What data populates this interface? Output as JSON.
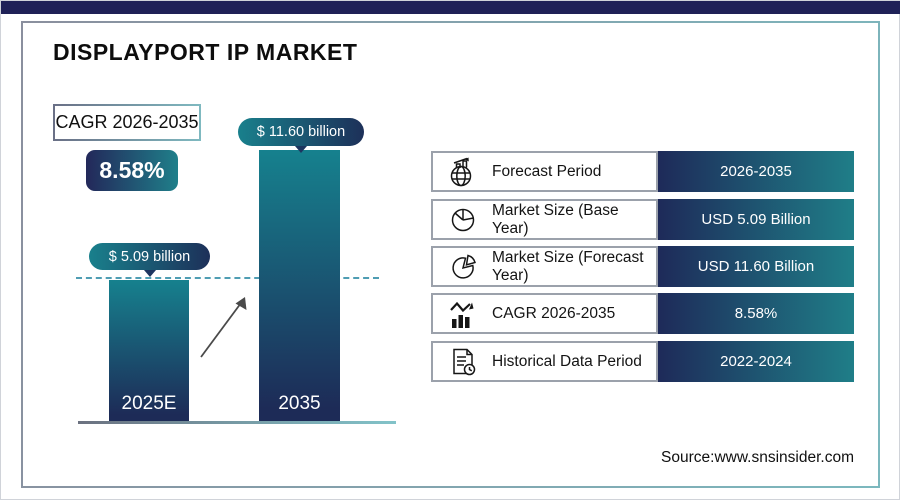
{
  "page": {
    "title": "DISPLAYPORT IP MARKET",
    "source": "Source:www.snsinsider.com"
  },
  "colors": {
    "navy": "#1F2157",
    "teal": "#1F7F8A",
    "bar_gradient_top": "#16818E",
    "bar_gradient_bottom": "#1D2B57",
    "dashed_reference_line": "#4F9DB3"
  },
  "cagr_callout": {
    "label": "CAGR 2026-2035",
    "value": "8.58%"
  },
  "chart_data": {
    "type": "bar",
    "title": "DisplayPort IP Market",
    "unit": "USD billion",
    "categories": [
      "2025E",
      "2035"
    ],
    "values": [
      5.09,
      11.6
    ],
    "bar_value_labels": [
      "$ 5.09 billion",
      "$ 11.60 billion"
    ],
    "cagr_percent": 8.58,
    "cagr_period": "2026-2035",
    "ylim": [
      0,
      12
    ],
    "grid": false,
    "legend": "none",
    "annotations": [
      "dashed horizontal reference line at 5.09 level",
      "diagonal growth arrow between the two bars"
    ]
  },
  "table": {
    "rows": [
      {
        "icon": "globe-growth-icon",
        "label": "Forecast Period",
        "value": "2026-2035"
      },
      {
        "icon": "pie-chart-icon",
        "label": "Market Size (Base Year)",
        "value": "USD 5.09 Billion"
      },
      {
        "icon": "pie-chart-exploded-icon",
        "label": "Market Size (Forecast Year)",
        "value": "USD 11.60 Billion"
      },
      {
        "icon": "bar-chart-growth-icon",
        "label": "CAGR 2026-2035",
        "value": "8.58%"
      },
      {
        "icon": "document-clock-icon",
        "label": "Historical Data Period",
        "value": "2022-2024"
      }
    ]
  }
}
